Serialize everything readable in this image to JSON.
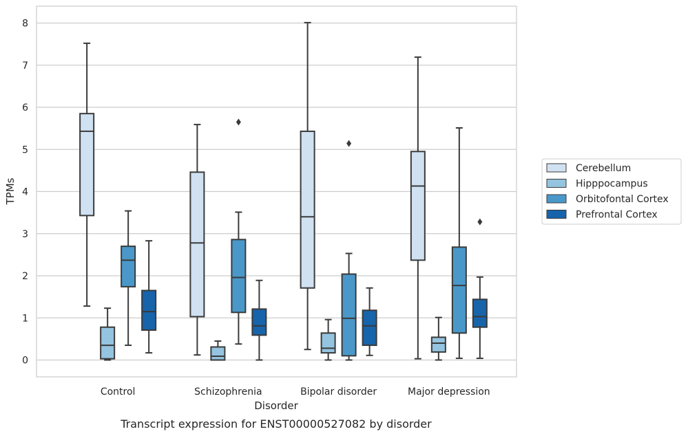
{
  "chart_data": {
    "type": "box",
    "title": "",
    "caption": "Transcript expression for ENST00000527082 by disorder",
    "xlabel": "Disorder",
    "ylabel": "TPMs",
    "ylim": [
      -0.4,
      8.4
    ],
    "yticks": [
      0,
      1,
      2,
      3,
      4,
      5,
      6,
      7,
      8
    ],
    "grid": "horizontal",
    "legend_placement": "right",
    "categories": [
      "Control",
      "Schizophrenia",
      "Bipolar disorder",
      "Major depression"
    ],
    "series": [
      {
        "name": "Cerebellum",
        "color": "#d0e1f2",
        "boxes": [
          {
            "whislo": 1.28,
            "q1": 3.43,
            "med": 5.43,
            "q3": 5.85,
            "whishi": 7.52,
            "fliers": []
          },
          {
            "whislo": 0.12,
            "q1": 1.03,
            "med": 2.78,
            "q3": 4.46,
            "whishi": 5.59,
            "fliers": []
          },
          {
            "whislo": 0.25,
            "q1": 1.71,
            "med": 3.4,
            "q3": 5.43,
            "whishi": 8.01,
            "fliers": []
          },
          {
            "whislo": 0.03,
            "q1": 2.37,
            "med": 4.13,
            "q3": 4.95,
            "whishi": 7.19,
            "fliers": []
          }
        ]
      },
      {
        "name": "Hipppocampus",
        "color": "#94c4df",
        "boxes": [
          {
            "whislo": 0.0,
            "q1": 0.03,
            "med": 0.35,
            "q3": 0.78,
            "whishi": 1.23,
            "fliers": []
          },
          {
            "whislo": 0.0,
            "q1": 0.0,
            "med": 0.09,
            "q3": 0.31,
            "whishi": 0.45,
            "fliers": []
          },
          {
            "whislo": 0.0,
            "q1": 0.17,
            "med": 0.28,
            "q3": 0.64,
            "whishi": 0.96,
            "fliers": []
          },
          {
            "whislo": 0.0,
            "q1": 0.19,
            "med": 0.4,
            "q3": 0.54,
            "whishi": 1.01,
            "fliers": []
          }
        ]
      },
      {
        "name": "Orbitofontal Cortex",
        "color": "#4a98c9",
        "boxes": [
          {
            "whislo": 0.35,
            "q1": 1.74,
            "med": 2.37,
            "q3": 2.7,
            "whishi": 3.54,
            "fliers": []
          },
          {
            "whislo": 0.38,
            "q1": 1.13,
            "med": 1.96,
            "q3": 2.86,
            "whishi": 3.51,
            "fliers": [
              5.65
            ]
          },
          {
            "whislo": 0.0,
            "q1": 0.1,
            "med": 0.99,
            "q3": 2.04,
            "whishi": 2.53,
            "fliers": [
              5.14
            ]
          },
          {
            "whislo": 0.04,
            "q1": 0.64,
            "med": 1.77,
            "q3": 2.68,
            "whishi": 5.51,
            "fliers": []
          }
        ]
      },
      {
        "name": "Prefrontal Cortex",
        "color": "#1764ab",
        "boxes": [
          {
            "whislo": 0.17,
            "q1": 0.71,
            "med": 1.15,
            "q3": 1.65,
            "whishi": 2.83,
            "fliers": []
          },
          {
            "whislo": 0.0,
            "q1": 0.59,
            "med": 0.81,
            "q3": 1.21,
            "whishi": 1.89,
            "fliers": []
          },
          {
            "whislo": 0.11,
            "q1": 0.35,
            "med": 0.81,
            "q3": 1.18,
            "whishi": 1.71,
            "fliers": []
          },
          {
            "whislo": 0.04,
            "q1": 0.78,
            "med": 1.03,
            "q3": 1.44,
            "whishi": 1.97,
            "fliers": [
              3.28
            ]
          }
        ]
      }
    ]
  }
}
